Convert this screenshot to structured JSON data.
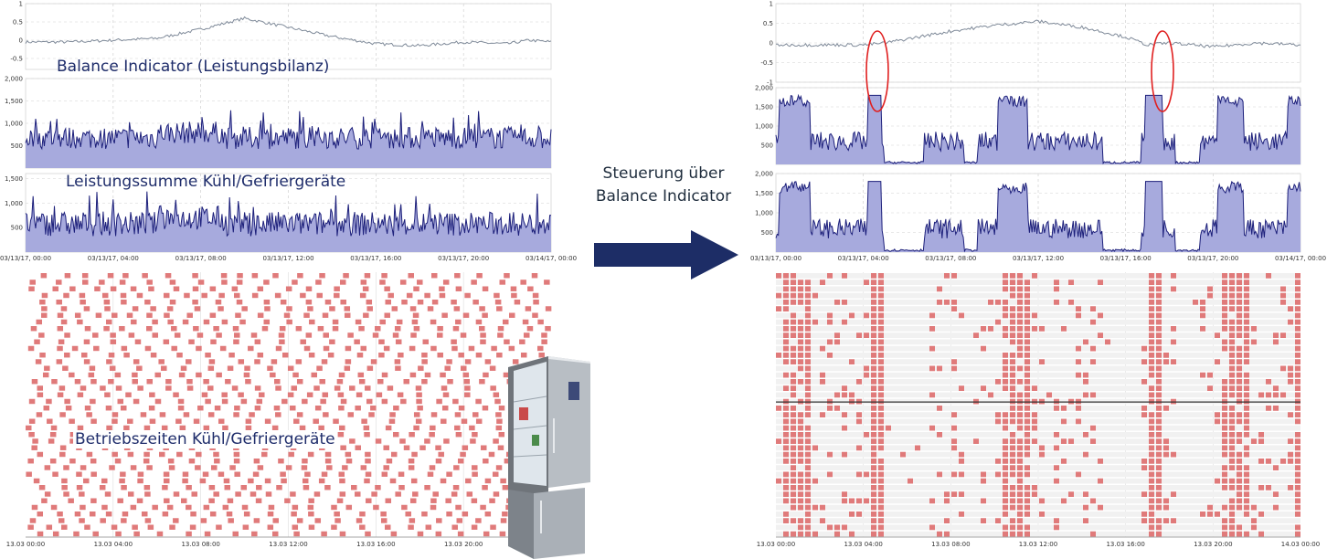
{
  "left_labels": {
    "balance": "Balance Indicator (Leistungsbilanz)",
    "power": "Leistungssumme Kühl/Gefriergeräte",
    "runtimes": "Betriebszeiten Kühl/Gefriergeräte"
  },
  "arrow_label_line1": "Steuerung über",
  "arrow_label_line2": "Balance Indicator",
  "illustration": "refrigerator-illustration",
  "colors": {
    "area_fill": "#a7aadd",
    "area_line": "#1c1f7a",
    "balance_line": "#7f8a99",
    "runtime_block": "#e07a7a",
    "arrow": "#1d2d66",
    "highlight": "#e02020"
  },
  "chart_data": [
    {
      "id": "left-balance",
      "type": "line",
      "y_ticks": [
        "1",
        "0.5",
        "0",
        "-0.5"
      ],
      "ylim": [
        -0.8,
        1
      ],
      "x_range_hours": [
        0,
        24
      ],
      "x": [
        0,
        2,
        4,
        6,
        8,
        10,
        12,
        14,
        16,
        18,
        20,
        22,
        23,
        24
      ],
      "values": [
        -0.05,
        -0.05,
        0.0,
        0.05,
        0.3,
        0.6,
        0.35,
        0.1,
        -0.1,
        -0.15,
        -0.05,
        -0.1,
        0.0,
        -0.05
      ]
    },
    {
      "id": "left-power",
      "type": "area",
      "y_ticks": [
        "2,000",
        "1,500",
        "1,000",
        "500"
      ],
      "ylim": [
        0,
        2000
      ],
      "x_range_hours": [
        0,
        24
      ],
      "level": 650,
      "peak": 1300
    },
    {
      "id": "left-power-2",
      "type": "area",
      "y_ticks": [
        "1,500",
        "1,000",
        "500"
      ],
      "ylim": [
        0,
        1600
      ],
      "x_range_hours": [
        0,
        24
      ],
      "level": 550,
      "peak": 1250,
      "x_tick_labels": [
        "03/13/17, 00:00",
        "03/13/17, 04:00",
        "03/13/17, 08:00",
        "03/13/17, 12:00",
        "03/13/17, 16:00",
        "03/13/17, 20:00",
        "03/14/17, 00:00"
      ]
    },
    {
      "id": "left-runtimes",
      "type": "heatmap",
      "x_tick_labels": [
        "13.03 00:00",
        "13.03 04:00",
        "13.03 08:00",
        "13.03 12:00",
        "13.03 16:00",
        "13.03 20:00"
      ]
    },
    {
      "id": "right-balance",
      "type": "line",
      "y_ticks": [
        "1",
        "0.5",
        "0",
        "-0.5",
        "-1"
      ],
      "ylim": [
        -1,
        1
      ],
      "x_range_hours": [
        0,
        24
      ],
      "x": [
        0,
        2,
        4,
        5,
        6,
        8,
        10,
        12,
        14,
        16,
        17,
        18,
        20,
        22,
        24
      ],
      "values": [
        -0.05,
        -0.05,
        -0.05,
        0.0,
        0.1,
        0.3,
        0.45,
        0.55,
        0.4,
        0.15,
        -0.05,
        0.0,
        -0.1,
        0.0,
        -0.05
      ]
    },
    {
      "id": "right-power",
      "type": "area",
      "y_ticks": [
        "2,000",
        "1,500",
        "1,000",
        "500"
      ],
      "ylim": [
        0,
        2000
      ],
      "x_range_hours": [
        0,
        24
      ],
      "level": 600,
      "peak": 1800
    },
    {
      "id": "right-power-2",
      "type": "area",
      "y_ticks": [
        "2,000",
        "1,500",
        "1,000",
        "500"
      ],
      "ylim": [
        0,
        2000
      ],
      "x_range_hours": [
        0,
        24
      ],
      "level": 600,
      "peak": 1800,
      "x_tick_labels": [
        "03/13/17, 00:00",
        "03/13/17, 04:00",
        "03/13/17, 08:00",
        "03/13/17, 12:00",
        "03/13/17, 16:00",
        "03/13/17, 20:00",
        "03/14/17, 00:00"
      ]
    },
    {
      "id": "right-runtimes",
      "type": "heatmap",
      "x_tick_labels": [
        "13.03 00:00",
        "13.03 04:00",
        "13.03 08:00",
        "13.03 12:00",
        "13.03 16:00",
        "13.03 20:00",
        "14.03 00:00"
      ]
    }
  ]
}
